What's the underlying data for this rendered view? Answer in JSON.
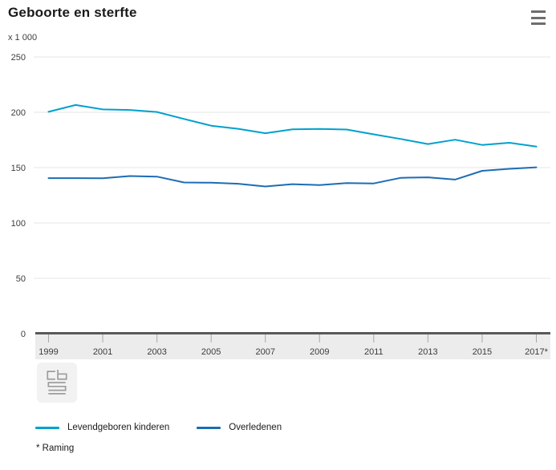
{
  "header": {
    "title": "Geboorte en sterfte",
    "menu_icon": "hamburger-menu-icon"
  },
  "chart_data": {
    "type": "line",
    "title": "Geboorte en sterfte",
    "unit_label": "x 1 000",
    "ylim": [
      0,
      250
    ],
    "yticks": [
      0,
      50,
      100,
      150,
      200,
      250
    ],
    "grid": "horizontal",
    "legend_position": "bottom",
    "x": [
      1999,
      2000,
      2001,
      2002,
      2003,
      2004,
      2005,
      2006,
      2007,
      2008,
      2009,
      2010,
      2011,
      2012,
      2013,
      2014,
      2015,
      2016,
      2017
    ],
    "x_tick_years": [
      1999,
      2001,
      2003,
      2005,
      2007,
      2009,
      2011,
      2013,
      2015,
      2017
    ],
    "x_tick_labels": [
      "1999",
      "2001",
      "2003",
      "2005",
      "2007",
      "2009",
      "2011",
      "2013",
      "2015",
      "2017*"
    ],
    "series": [
      {
        "name": "Levendgeboren kinderen",
        "color": "#00a1cd",
        "values": [
          200.4,
          206.6,
          202.6,
          202.1,
          200.3,
          194.0,
          187.9,
          185.1,
          181.1,
          184.6,
          184.9,
          184.4,
          180.1,
          175.9,
          171.3,
          175.2,
          170.5,
          172.5,
          169.0
        ]
      },
      {
        "name": "Overledenen",
        "color": "#1d6cb5",
        "values": [
          140.5,
          140.5,
          140.4,
          142.4,
          141.9,
          136.6,
          136.4,
          135.4,
          133.0,
          135.1,
          134.2,
          136.1,
          135.7,
          140.8,
          141.2,
          139.2,
          147.1,
          148.9,
          150.3
        ]
      }
    ],
    "footnote": "* Raming"
  },
  "style": {
    "gridline_color": "#e5e5e5",
    "axis_line_color": "#58595b",
    "axis_band_color": "#ececec",
    "tick_color": "#a8a8a8",
    "label_color": "#3c3c3c",
    "logo_glyph_color": "#9d9d9d"
  },
  "logo": {
    "icon": "cbs-logo"
  }
}
